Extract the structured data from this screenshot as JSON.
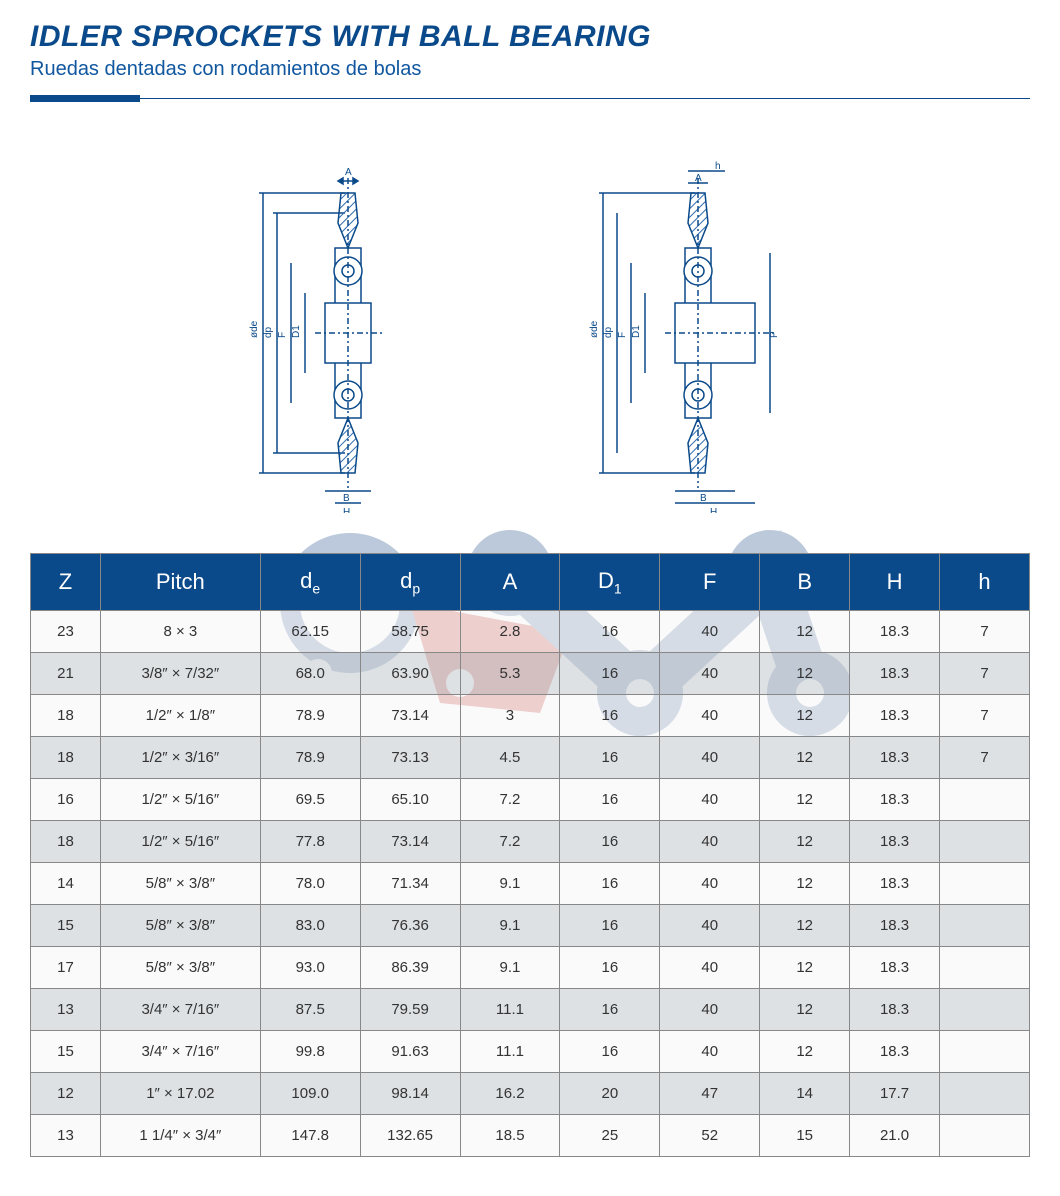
{
  "title": {
    "main": "IDLER SPROCKETS WITH BALL BEARING",
    "sub": "Ruedas dentadas con rodamientos de bolas"
  },
  "colors": {
    "brand_blue": "#0b4a8a",
    "header_bg": "#0b4a8a",
    "header_text": "#ffffff",
    "row_even_bg": "#c3c9ce",
    "row_odd_bg": "#f3f3f3",
    "border": "#888888",
    "diagram_stroke": "#0b4a8a",
    "diagram_hatch": "#2c6bb0",
    "watermark_blue": "#5b7ba8",
    "watermark_red": "#c7443f"
  },
  "diagram": {
    "labels_left": [
      "øde",
      "dp",
      "F",
      "D1",
      "A",
      "B",
      "H"
    ],
    "labels_right": [
      "øde",
      "dp",
      "F",
      "D1",
      "P",
      "h",
      "A",
      "B",
      "H"
    ]
  },
  "table": {
    "columns": [
      "Z",
      "Pitch",
      "de",
      "dp",
      "A",
      "D1",
      "F",
      "B",
      "H",
      "h"
    ],
    "column_sub_index": [
      2,
      3,
      5
    ],
    "rows": [
      [
        "23",
        "8 × 3",
        "62.15",
        "58.75",
        "2.8",
        "16",
        "40",
        "12",
        "18.3",
        "7"
      ],
      [
        "21",
        "3/8″ × 7/32″",
        "68.0",
        "63.90",
        "5.3",
        "16",
        "40",
        "12",
        "18.3",
        "7"
      ],
      [
        "18",
        "1/2″ × 1/8″",
        "78.9",
        "73.14",
        "3",
        "16",
        "40",
        "12",
        "18.3",
        "7"
      ],
      [
        "18",
        "1/2″ × 3/16″",
        "78.9",
        "73.13",
        "4.5",
        "16",
        "40",
        "12",
        "18.3",
        "7"
      ],
      [
        "16",
        "1/2″ × 5/16″",
        "69.5",
        "65.10",
        "7.2",
        "16",
        "40",
        "12",
        "18.3",
        ""
      ],
      [
        "18",
        "1/2″ × 5/16″",
        "77.8",
        "73.14",
        "7.2",
        "16",
        "40",
        "12",
        "18.3",
        ""
      ],
      [
        "14",
        "5/8″  × 3/8″",
        "78.0",
        "71.34",
        "9.1",
        "16",
        "40",
        "12",
        "18.3",
        ""
      ],
      [
        "15",
        "5/8″  × 3/8″",
        "83.0",
        "76.36",
        "9.1",
        "16",
        "40",
        "12",
        "18.3",
        ""
      ],
      [
        "17",
        "5/8″  × 3/8″",
        "93.0",
        "86.39",
        "9.1",
        "16",
        "40",
        "12",
        "18.3",
        ""
      ],
      [
        "13",
        "3/4″ × 7/16″",
        "87.5",
        "79.59",
        "11.1",
        "16",
        "40",
        "12",
        "18.3",
        ""
      ],
      [
        "15",
        "3/4″ × 7/16″",
        "99.8",
        "91.63",
        "11.1",
        "16",
        "40",
        "12",
        "18.3",
        ""
      ],
      [
        "12",
        "1″  × 17.02",
        "109.0",
        "98.14",
        "16.2",
        "20",
        "47",
        "14",
        "17.7",
        ""
      ],
      [
        "13",
        "1 1/4″  × 3/4″",
        "147.8",
        "132.65",
        "18.5",
        "25",
        "52",
        "15",
        "21.0",
        ""
      ]
    ],
    "font_size": 15,
    "header_font_size": 22
  }
}
